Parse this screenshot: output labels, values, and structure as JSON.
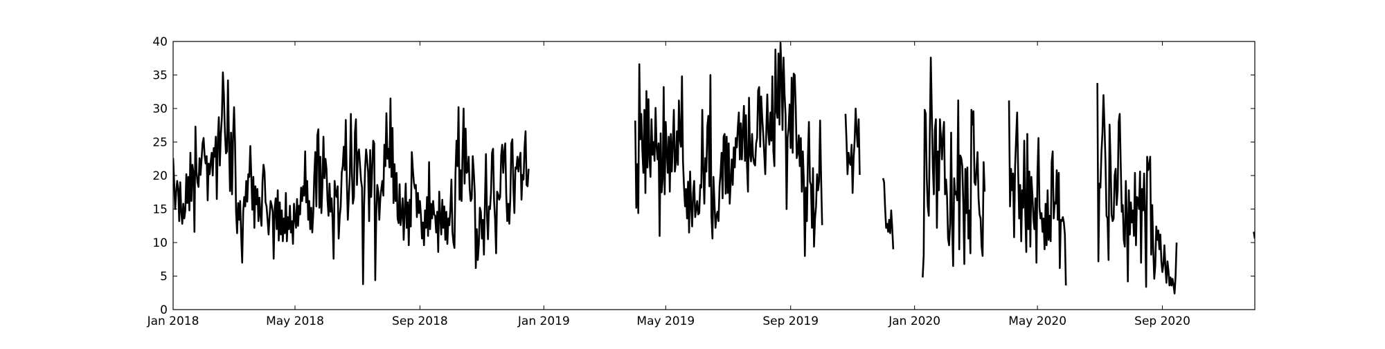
{
  "chart_data": {
    "type": "line",
    "title": "",
    "xlabel": "",
    "ylabel": "",
    "xlim": [
      "2018-01-01",
      "2020-12-01"
    ],
    "ylim": [
      0,
      40
    ],
    "grid": false,
    "legend": "none",
    "line_color": "#000000",
    "x_ticks": [
      {
        "date": "2018-01-01",
        "label": "Jan 2018"
      },
      {
        "date": "2018-05-01",
        "label": "May 2018"
      },
      {
        "date": "2018-09-01",
        "label": "Sep 2018"
      },
      {
        "date": "2019-01-01",
        "label": "Jan 2019"
      },
      {
        "date": "2019-05-01",
        "label": "May 2019"
      },
      {
        "date": "2019-09-01",
        "label": "Sep 2019"
      },
      {
        "date": "2020-01-01",
        "label": "Jan 2020"
      },
      {
        "date": "2020-05-01",
        "label": "May 2020"
      },
      {
        "date": "2020-09-01",
        "label": "Sep 2020"
      }
    ],
    "y_ticks": [
      0,
      5,
      10,
      15,
      20,
      25,
      30,
      35,
      40
    ],
    "series": [
      {
        "segments": [
          {
            "start": "2018-01-01",
            "values": [
              22.6,
              19.0,
              15.0,
              17.5,
              19.2,
              18.0,
              13.2,
              19.0,
              14.6,
              12.8,
              15.8,
              13.6,
              14.8,
              20.2,
              15.9,
              19.8,
              14.8,
              23.4,
              16.2,
              21.6,
              20.4,
              11.6,
              27.3,
              20.6,
              19.0,
              18.3,
              22.6,
              20.1,
              22.4,
              24.8,
              25.6,
              23.0,
              21.8,
              22.9,
              16.3,
              21.8,
              20.2,
              22.0,
              23.4,
              20.0,
              24.1,
              22.8,
              25.8,
              16.5,
              25.3,
              28.7,
              21.5,
              26.1,
              28.6,
              35.4,
              32.0,
              26.5,
              23.3,
              23.6,
              34.2,
              25.0,
              17.7,
              26.4,
              17.2,
              25.7,
              30.2,
              24.7,
              14.5,
              11.4,
              15.9,
              13.4,
              16.2,
              11.0,
              7.0,
              14.6,
              16.8,
              15.4,
              19.2,
              16.1,
              20.2,
              19.8,
              24.4,
              19.8,
              14.9,
              19.8,
              12.2,
              18.4,
              15.7,
              18.0,
              13.2,
              16.7,
              14.1,
              12.5,
              19.1,
              21.6,
              20.5,
              16.0,
              15.4,
              13.4,
              11.2,
              14.0,
              16.2,
              15.6,
              14.6,
              7.6,
              15.2,
              16.6,
              12.0,
              17.8,
              10.3,
              16.0,
              11.2,
              14.8,
              10.2,
              13.6,
              11.4,
              17.4,
              10.2,
              13.8,
              12.0,
              15.5,
              11.5,
              13.2,
              9.8,
              15.8,
              13.6,
              12.2,
              16.5,
              12.5,
              15.5,
              14.2,
              18.2,
              16.2,
              18.4,
              17.0,
              23.6,
              16.0,
              19.2,
              13.4,
              16.2,
              12.0,
              15.2,
              11.5,
              14.4,
              20.1,
              23.5,
              15.4,
              26.0,
              26.9,
              15.2,
              22.8,
              14.4,
              18.6,
              25.8,
              19.6,
              22.5,
              21.0,
              16.4,
              14.0,
              18.8,
              14.6,
              16.6,
              13.4,
              7.6,
              19.2,
              17.4,
              16.8,
              18.4,
              10.6,
              13.8,
              15.4,
              20.4,
              21.4,
              24.3,
              20.8,
              28.3,
              19.3,
              13.4,
              16.8,
              20.1,
              29.2,
              20.6,
              15.8,
              16.8,
              26.4,
              28.4,
              18.6,
              23.3,
              23.9,
              21.6,
              19.3,
              18.2,
              3.8,
              15.3,
              21.0,
              23.9,
              22.4,
              20.5,
              13.2,
              23.8,
              16.8,
              21.0,
              25.2,
              24.8,
              4.4,
              14.2,
              18.6,
              17.6,
              13.4,
              16.6,
              18.0,
              19.2,
              17.0,
              24.6,
              21.4,
              29.3,
              22.5,
              24.0,
              21.2,
              31.5,
              19.8,
              27.1,
              15.9,
              21.7,
              16.2,
              20.4,
              13.6,
              12.9,
              18.7,
              12.6,
              14.1,
              16.6,
              10.4,
              14.8,
              18.8,
              12.2,
              16.0,
              9.6,
              16.4,
              12.4,
              23.5,
              21.0,
              19.0,
              18.1,
              18.6,
              13.8,
              17.4,
              14.4,
              16.2,
              14.0,
              10.6,
              13.0,
              9.6,
              14.8,
              12.2,
              16.8,
              11.0,
              22.0,
              12.0,
              15.8,
              13.6,
              16.2,
              14.2,
              14.0,
              11.5,
              14.6,
              8.6,
              17.6,
              13.8,
              11.2,
              16.4,
              12.2,
              15.4,
              10.4,
              14.6,
              9.8,
              13.6,
              12.6,
              15.2,
              19.4,
              11.6,
              10.0,
              9.2,
              20.3,
              25.2,
              21.4,
              30.2,
              16.4,
              20.8,
              16.2,
              23.7,
              30.0,
              18.8,
              27.0,
              20.4,
              20.6,
              22.8,
              18.0,
              16.2,
              16.6,
              22.9,
              20.6,
              17.4,
              6.2,
              12.0,
              7.4,
              9.8,
              15.2,
              14.6,
              10.6,
              13.4,
              8.2,
              16.0,
              23.2,
              14.0,
              10.5,
              15.4,
              15.0,
              17.6,
              23.4,
              24.0,
              16.2,
              13.5,
              8.4,
              17.6,
              17.2,
              16.4,
              16.8,
              23.0,
              24.6,
              20.4,
              23.5,
              24.8,
              17.0,
              13.2,
              15.8,
              12.8,
              16.6,
              24.8,
              25.4,
              18.2,
              14.4,
              21.2,
              21.0,
              22.8,
              20.6,
              22.4,
              23.4,
              16.4,
              20.1,
              19.4,
              24.2,
              26.6,
              18.6,
              18.4,
              21.0
            ]
          },
          {
            "start": "2019-04-01",
            "values": [
              28.2,
              15.2,
              21.7,
              14.4,
              36.6,
              25.4,
              29.2,
              23.6,
              20.4,
              29.8,
              17.4,
              32.6,
              21.2,
              31.4,
              22.6,
              19.8,
              28.4,
              23.1,
              25.0,
              22.2,
              30.1,
              24.3,
              22.4,
              24.8,
              11.0,
              26.3,
              17.5,
              19.4,
              33.2,
              17.2,
              28.0,
              23.7,
              20.4,
              25.8,
              17.6,
              26.2,
              20.6,
              24.8,
              29.8,
              20.6,
              22.0,
              26.6,
              21.6,
              31.2,
              25.4,
              24.3,
              34.8,
              22.1,
              18.4,
              15.4,
              18.0,
              13.6,
              19.1,
              11.5,
              20.6,
              15.6,
              12.4,
              17.4,
              19.2,
              13.8,
              15.0,
              16.2,
              14.2,
              14.4,
              18.6,
              18.2,
              29.8,
              21.0,
              15.8,
              22.6,
              20.6,
              27.4,
              28.9,
              18.4,
              35.0,
              14.0,
              10.6,
              19.8,
              16.0,
              12.2,
              14.0,
              14.6,
              13.2,
              18.4,
              20.4,
              23.4,
              16.6,
              25.8,
              26.2,
              17.3,
              25.8,
              17.4,
              24.8,
              15.8,
              19.0,
              22.4,
              18.6,
              24.2,
              21.2,
              25.6,
              24.2,
              27.2,
              29.4,
              22.4,
              27.8,
              22.4,
              26.8,
              30.4,
              22.2,
              29.0,
              21.6,
              17.6,
              31.6,
              23.2,
              22.1,
              26.2,
              22.8,
              21.8,
              21.5,
              24.8,
              25.6,
              32.7,
              33.2,
              24.3,
              31.8,
              28.6,
              26.2,
              23.2,
              20.2,
              26.5,
              32.1,
              26.4,
              24.6,
              29.4,
              25.2,
              34.8,
              23.6,
              21.4,
              38.8,
              29.8,
              28.6,
              38.2,
              27.6,
              39.8,
              35.4,
              26.8,
              37.6,
              32.2,
              29.0,
              15.0,
              25.6,
              27.2,
              30.6,
              24.1,
              34.6,
              23.4,
              35.2,
              35.0,
              30.2,
              22.6,
              23.4,
              26.0,
              21.4,
              25.6,
              17.6,
              23.6,
              19.2,
              8.0,
              18.2,
              13.2,
              22.8,
              28.0,
              19.1,
              18.6,
              12.2,
              21.1,
              9.4,
              13.6,
              15.4,
              20.2,
              17.8,
              19.2,
              28.2,
              19.6,
              12.6
            ]
          },
          {
            "start": "2019-10-25",
            "values": [
              29.2,
              25.2,
              20.2,
              23.4,
              22.0,
              21.6,
              24.6,
              17.4,
              22.6,
              25.2,
              30.0,
              26.6,
              24.3,
              28.4,
              20.1
            ]
          },
          {
            "start": "2019-12-01",
            "values": [
              19.6,
              19.0,
              15.2,
              12.2,
              12.8,
              11.6,
              13.4,
              11.4,
              14.8,
              12.2,
              9.0
            ]
          },
          {
            "start": "2020-01-09",
            "values": [
              4.8,
              8.1,
              29.8,
              29.2,
              19.6,
              15.4,
              14.0,
              26.2,
              37.6,
              29.4,
              21.2,
              17.2,
              26.8,
              28.4,
              12.2,
              23.6,
              17.8,
              28.4,
              25.6,
              22.4,
              26.2,
              28.0,
              17.2,
              19.4,
              16.8,
              10.6,
              9.6,
              12.8,
              26.4,
              12.4,
              6.5,
              19.6,
              17.2,
              17.6,
              16.3,
              31.2,
              9.0,
              23.0,
              22.6,
              21.4,
              15.6,
              6.8,
              21.0,
              14.4,
              21.2,
              10.6,
              14.8,
              8.4,
              29.8,
              27.6,
              29.6,
              19.0,
              18.6,
              21.0,
              23.5,
              16.6,
              14.2,
              13.6,
              9.4,
              8.0,
              22.0,
              17.6
            ]
          },
          {
            "start": "2020-04-03",
            "values": [
              31.2,
              15.4,
              21.0,
              17.8,
              20.3,
              10.8,
              21.4,
              25.6,
              29.4,
              20.6,
              13.6,
              18.6,
              10.2,
              17.8,
              15.2,
              25.2,
              14.4,
              8.6,
              26.2,
              12.0,
              20.6,
              9.4,
              19.8,
              17.2,
              13.6,
              12.0,
              16.6,
              7.0,
              20.3,
              25.6,
              15.2,
              13.6,
              14.4,
              11.6,
              13.6,
              9.0,
              15.8,
              9.6,
              17.8,
              10.4,
              14.0,
              10.2,
              22.0,
              23.6,
              13.6,
              16.0,
              15.8,
              20.8,
              13.4,
              20.4,
              6.2,
              13.4,
              13.2,
              13.8,
              13.0,
              11.2,
              3.6
            ]
          },
          {
            "start": "2020-06-29",
            "values": [
              33.8,
              7.2,
              18.8,
              18.2,
              23.4,
              26.4,
              32.0,
              27.4,
              22.0,
              14.0,
              13.6,
              7.4,
              27.6,
              22.2,
              14.2,
              13.2,
              13.6,
              20.0,
              21.0,
              15.6,
              17.8,
              28.0,
              29.2,
              21.6,
              14.6,
              15.6,
              10.4,
              9.4,
              19.2,
              13.8,
              4.2,
              17.8,
              11.2,
              16.0,
              13.0,
              14.8,
              11.0,
              20.4,
              9.6,
              16.8,
              16.6,
              15.0,
              20.6,
              7.0,
              18.0,
              14.8,
              20.3,
              13.6,
              3.4,
              22.8,
              20.8,
              21.4,
              22.8,
              8.2,
              15.6,
              9.0,
              4.6,
              6.6,
              12.4,
              10.4,
              11.8,
              9.0,
              11.2,
              7.2,
              5.6,
              6.8,
              9.6,
              6.2,
              4.0,
              7.2,
              5.8,
              3.6,
              4.8,
              3.6,
              4.6,
              3.6,
              2.4,
              5.0,
              10.0
            ]
          },
          {
            "start": "2020-11-30",
            "values": [
              11.6,
              10.6
            ]
          }
        ]
      }
    ]
  }
}
